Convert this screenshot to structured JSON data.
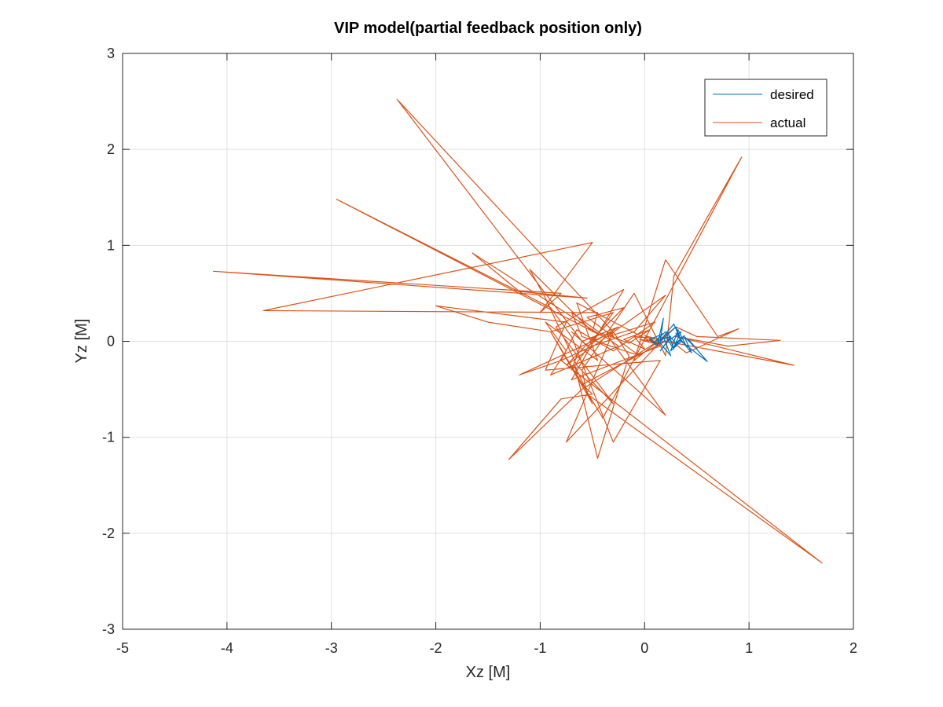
{
  "chart_data": {
    "type": "line",
    "title": "VIP model(partial feedback position only)",
    "xlabel": "Xz [M]",
    "ylabel": "Yz [M]",
    "xlim": [
      -5,
      2
    ],
    "ylim": [
      -3,
      3
    ],
    "xticks": [
      -5,
      -4,
      -3,
      -2,
      -1,
      0,
      1,
      2
    ],
    "yticks": [
      -3,
      -2,
      -1,
      0,
      1,
      2,
      3
    ],
    "xtick_labels": [
      "-5",
      "-4",
      "-3",
      "-2",
      "-1",
      "0",
      "1",
      "2"
    ],
    "ytick_labels": [
      "-3",
      "-2",
      "-1",
      "0",
      "1",
      "2",
      "3"
    ],
    "grid": true,
    "box": true,
    "legend_position": "top-right",
    "colors": {
      "desired": "#0072BD",
      "actual": "#D95319",
      "grid": "#e1e1e1",
      "axis": "#262626"
    },
    "series": [
      {
        "name": "desired",
        "color": "#0072BD",
        "x": [
          0.05,
          0.12,
          0.18,
          0.15,
          0.22,
          0.28,
          0.2,
          0.3,
          0.35,
          0.25,
          0.32,
          0.4,
          0.3,
          0.45,
          0.38,
          0.5,
          0.42,
          0.6,
          0.35,
          0.28,
          0.18,
          0.25,
          0.12,
          0.2,
          0.3,
          0.38,
          0.28,
          0.35,
          0.22,
          0.15,
          0.25,
          0.1,
          0.18,
          0.05,
          0.12,
          0.2
        ],
        "y": [
          0.02,
          -0.05,
          0.24,
          0.0,
          0.1,
          -0.08,
          0.05,
          0.15,
          0.0,
          -0.1,
          0.12,
          -0.05,
          0.08,
          -0.12,
          0.05,
          -0.08,
          0.02,
          -0.21,
          0.0,
          0.18,
          0.05,
          -0.15,
          0.02,
          0.1,
          -0.02,
          0.06,
          -0.06,
          0.1,
          0.0,
          -0.1,
          0.05,
          0.0,
          0.08,
          0.02,
          -0.03,
          0.01
        ]
      },
      {
        "name": "actual",
        "color": "#D95319",
        "x": [
          0.0,
          0.2,
          0.4,
          0.9,
          0.7,
          0.2,
          -0.1,
          0.3,
          0.5,
          1.3,
          0.8,
          0.3,
          1.43,
          0.2,
          -0.6,
          -0.5,
          -0.8,
          -1.3,
          -0.6,
          0.2,
          -0.75,
          -0.3,
          -2.37,
          -0.6,
          -0.7,
          -0.3,
          -0.9,
          -0.4,
          0.93,
          0.28,
          0.2,
          -0.1,
          -0.6,
          -0.55,
          1.7,
          -0.8,
          -1.2,
          -0.3,
          -0.15,
          -0.45,
          -0.67,
          -0.5,
          -0.9,
          -1.5,
          -2.0,
          -0.75,
          -0.95,
          0.15,
          -0.3,
          -0.7,
          -0.9,
          -2.95,
          -0.4,
          -1.65,
          -1.2,
          -0.55,
          -4.13,
          -0.8,
          -1.0,
          -0.5,
          -3.65,
          -0.45,
          -0.5,
          -1.1,
          -0.95,
          -0.65,
          -0.3,
          -0.85,
          -0.2,
          -0.7,
          0.15,
          -0.65,
          -0.45,
          -0.95,
          -0.75,
          -0.9,
          -0.25,
          -0.7,
          -0.6,
          -0.05,
          -0.55,
          -0.2,
          -0.75,
          0.2,
          -0.1,
          -0.5,
          -0.8,
          -0.65,
          -0.3,
          0.1,
          -0.35,
          0.2,
          -0.7,
          -0.55,
          -0.25,
          -0.6,
          -0.4,
          -0.15,
          0.05,
          -0.2,
          0.0,
          -0.1,
          0.1,
          0.0,
          0.15,
          -0.05,
          0.1,
          0.05
        ],
        "y": [
          0.0,
          0.05,
          -0.12,
          0.13,
          0.05,
          0.85,
          -0.2,
          0.15,
          0.05,
          0.01,
          -0.05,
          0.05,
          -0.25,
          0.0,
          -0.45,
          -0.55,
          -0.6,
          -1.23,
          -0.5,
          0.05,
          -1.05,
          0.1,
          2.52,
          0.0,
          -0.3,
          0.3,
          0.1,
          -0.8,
          1.92,
          0.68,
          -0.15,
          0.5,
          -0.3,
          -0.55,
          -2.31,
          -0.2,
          -0.35,
          0.1,
          -0.15,
          -1.22,
          -0.25,
          -0.65,
          0.1,
          0.2,
          0.37,
          0.2,
          -0.3,
          -0.2,
          -1.05,
          0.05,
          0.35,
          1.48,
          0.05,
          0.92,
          0.52,
          0.45,
          0.73,
          0.5,
          0.3,
          1.03,
          0.32,
          0.3,
          0.1,
          0.75,
          0.45,
          -0.25,
          -0.65,
          0.15,
          0.54,
          -0.4,
          -0.05,
          0.4,
          -0.2,
          0.2,
          -0.1,
          -0.35,
          -0.05,
          0.3,
          0.05,
          -0.15,
          0.25,
          0.35,
          -0.25,
          0.48,
          0.1,
          -0.05,
          -0.2,
          0.12,
          -0.1,
          0.2,
          0.05,
          -0.77,
          0.1,
          -0.05,
          0.15,
          0.0,
          0.08,
          -0.02,
          0.12,
          0.02,
          -0.08,
          0.05,
          0.03,
          0.06,
          -0.04,
          0.02,
          0.0,
          0.01
        ]
      }
    ]
  }
}
